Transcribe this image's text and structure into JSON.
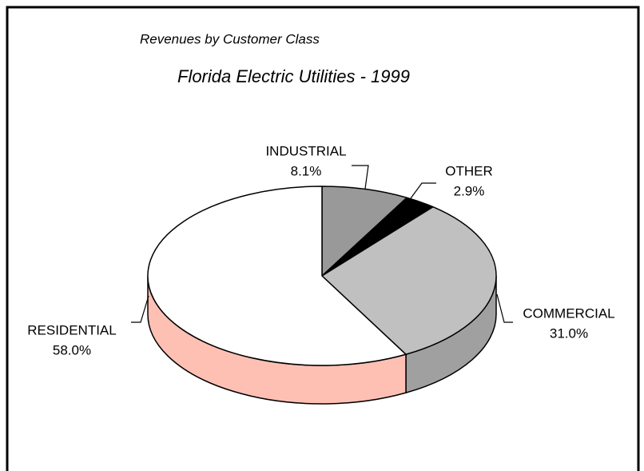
{
  "chart_data": {
    "type": "pie3d",
    "title": "Revenues by Customer Class",
    "subtitle": "Florida Electric Utilities - 1999",
    "categories": [
      "INDUSTRIAL",
      "OTHER",
      "COMMERCIAL",
      "RESIDENTIAL"
    ],
    "values": [
      8.1,
      2.9,
      31.0,
      58.0
    ],
    "value_labels": [
      "8.1%",
      "2.9%",
      "31.0%",
      "58.0%"
    ],
    "colors": [
      "#999999",
      "#000000",
      "#c0c0c0",
      "#ffffff"
    ],
    "side_colors": [
      "#7a7a7a",
      "#000000",
      "#a0a0a0",
      "#ffc0b4"
    ]
  }
}
